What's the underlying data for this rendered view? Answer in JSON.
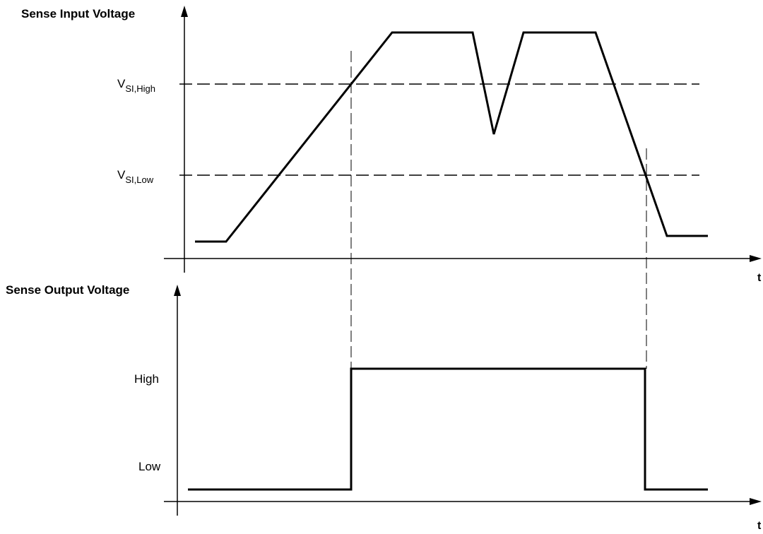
{
  "input_panel": {
    "title": "Sense Input Voltage",
    "axis_label": "t",
    "threshold_high": {
      "main": "V",
      "sub": "SI,High"
    },
    "threshold_low": {
      "main": "V",
      "sub": "SI,Low"
    }
  },
  "output_panel": {
    "title": "Sense Output Voltage",
    "axis_label": "t",
    "level_high": "High",
    "level_low": "Low"
  }
}
